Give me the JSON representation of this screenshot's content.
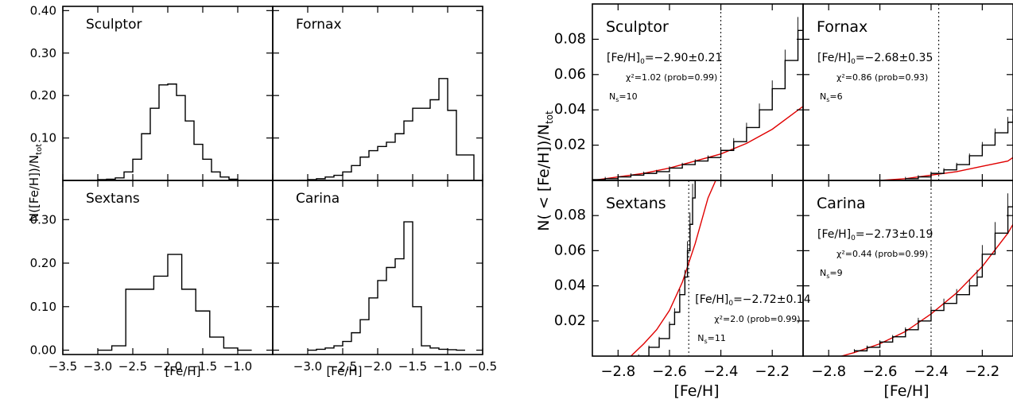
{
  "figure": {
    "left_group": {
      "y_axis_label": "N([Fe/H])/N",
      "y_axis_label_sub": "tot",
      "x_axis_label": "[Fe/H]"
    },
    "right_group": {
      "y_axis_label": "N( < [Fe/H])/N",
      "y_axis_label_sub": "tot",
      "x_axis_label": "[Fe/H]"
    }
  },
  "chart_data": [
    {
      "type": "histogram",
      "title": "Sculptor",
      "bin_width": 0.125,
      "bin_starts": [
        -3.125,
        -3.0,
        -2.875,
        -2.75,
        -2.625,
        -2.5,
        -2.375,
        -2.25,
        -2.125,
        -2.0,
        -1.875,
        -1.75,
        -1.625,
        -1.5,
        -1.375,
        -1.25,
        -1.125,
        -1.0
      ],
      "values": [
        0.0,
        0.002,
        0.003,
        0.006,
        0.02,
        0.05,
        0.11,
        0.17,
        0.225,
        0.227,
        0.2,
        0.14,
        0.085,
        0.05,
        0.02,
        0.008,
        0.003,
        0.0
      ],
      "xlim": [
        -3.5,
        -0.5
      ],
      "ylim": [
        0.0,
        0.41
      ],
      "yticks": [
        "0.10",
        "0.20",
        "0.30",
        "0.40"
      ]
    },
    {
      "type": "histogram",
      "title": "Fornax",
      "bin_width": 0.125,
      "bin_starts": [
        -3.125,
        -3.0,
        -2.875,
        -2.75,
        -2.625,
        -2.5,
        -2.375,
        -2.25,
        -2.125,
        -2.0,
        -1.875,
        -1.75,
        -1.625,
        -1.5,
        -1.375,
        -1.25,
        -1.125,
        -1.0,
        -0.875,
        -0.75
      ],
      "values": [
        0.0,
        0.002,
        0.004,
        0.008,
        0.012,
        0.02,
        0.035,
        0.055,
        0.07,
        0.08,
        0.09,
        0.11,
        0.14,
        0.17,
        0.17,
        0.19,
        0.24,
        0.165,
        0.06,
        0.06
      ],
      "xlim": [
        -3.5,
        -0.5
      ],
      "ylim": [
        0.0,
        0.41
      ]
    },
    {
      "type": "histogram",
      "title": "Sextans",
      "bin_width": 0.2,
      "bin_starts": [
        -3.0,
        -2.8,
        -2.6,
        -2.4,
        -2.2,
        -2.0,
        -1.8,
        -1.6,
        -1.4,
        -1.2,
        -1.0
      ],
      "values": [
        0.0,
        0.01,
        0.14,
        0.14,
        0.17,
        0.22,
        0.14,
        0.09,
        0.03,
        0.005,
        0.0
      ],
      "xlim": [
        -3.5,
        -0.5
      ],
      "ylim": [
        -0.01,
        0.39
      ],
      "yticks": [
        "0.00",
        "0.10",
        "0.20",
        "0.30"
      ],
      "xticks": [
        "−3.5",
        "−3.0",
        "−2.5",
        "−2.0",
        "−1.5",
        "−1.0"
      ]
    },
    {
      "type": "histogram",
      "title": "Carina",
      "bin_width": 0.125,
      "bin_starts": [
        -3.0,
        -2.875,
        -2.75,
        -2.625,
        -2.5,
        -2.375,
        -2.25,
        -2.125,
        -2.0,
        -1.875,
        -1.75,
        -1.625,
        -1.5,
        -1.375,
        -1.25,
        -1.125,
        -1.0,
        -0.875
      ],
      "values": [
        0.0,
        0.002,
        0.005,
        0.01,
        0.02,
        0.04,
        0.07,
        0.12,
        0.16,
        0.19,
        0.21,
        0.295,
        0.1,
        0.01,
        0.005,
        0.002,
        0.001,
        0.0
      ],
      "xlim": [
        -3.5,
        -0.5
      ],
      "ylim": [
        -0.01,
        0.39
      ],
      "xticks": [
        "−3.0",
        "−2.5",
        "−2.0",
        "−1.5",
        "−1.0",
        "−0.5"
      ]
    },
    {
      "type": "line",
      "title": "Sculptor",
      "feh0_label": "[Fe/H]",
      "feh0_value": "=−2.90±0.21",
      "chi2_label": "χ²=1.02 (prob=0.99)",
      "ns_label": "N",
      "ns_value": "=10",
      "cutoff": -2.4,
      "data": {
        "x": [
          -2.9,
          -2.85,
          -2.8,
          -2.75,
          -2.7,
          -2.65,
          -2.6,
          -2.55,
          -2.5,
          -2.45,
          -2.4,
          -2.35,
          -2.3,
          -2.25,
          -2.2,
          -2.15,
          -2.1,
          -2.08
        ],
        "y": [
          0.0005,
          0.001,
          0.002,
          0.003,
          0.004,
          0.005,
          0.007,
          0.009,
          0.011,
          0.013,
          0.017,
          0.022,
          0.03,
          0.04,
          0.052,
          0.068,
          0.085,
          0.099
        ]
      },
      "fit": {
        "x": [
          -2.9,
          -2.8,
          -2.7,
          -2.6,
          -2.5,
          -2.4,
          -2.3,
          -2.2,
          -2.08
        ],
        "y": [
          0.0,
          0.002,
          0.004,
          0.007,
          0.011,
          0.015,
          0.021,
          0.029,
          0.042
        ]
      },
      "xlim": [
        -2.9,
        -2.08
      ],
      "ylim": [
        0.0,
        0.1
      ],
      "yticks": [
        "0.02",
        "0.04",
        "0.06",
        "0.08"
      ]
    },
    {
      "type": "line",
      "title": "Fornax",
      "feh0_label": "[Fe/H]",
      "feh0_value": "=−2.68±0.35",
      "chi2_label": "χ²=0.86 (prob=0.93)",
      "ns_label": "N",
      "ns_value": "=6",
      "cutoff": -2.37,
      "data": {
        "x": [
          -2.5,
          -2.45,
          -2.4,
          -2.35,
          -2.3,
          -2.25,
          -2.2,
          -2.15,
          -2.1,
          -2.08
        ],
        "y": [
          0.001,
          0.002,
          0.004,
          0.006,
          0.009,
          0.014,
          0.02,
          0.027,
          0.033,
          0.037
        ]
      },
      "fit": {
        "x": [
          -2.6,
          -2.5,
          -2.4,
          -2.3,
          -2.2,
          -2.1,
          -2.08
        ],
        "y": [
          0.0,
          0.001,
          0.003,
          0.005,
          0.008,
          0.011,
          0.013
        ]
      },
      "xlim": [
        -2.9,
        -2.08
      ],
      "ylim": [
        0.0,
        0.1
      ]
    },
    {
      "type": "line",
      "title": "Sextans",
      "feh0_label": "[Fe/H]",
      "feh0_value": "=−2.72±0.14",
      "chi2_label": "χ²=2.0 (prob=0.99)",
      "ns_label": "N",
      "ns_value": "=11",
      "cutoff": -2.525,
      "data": {
        "x": [
          -2.72,
          -2.68,
          -2.64,
          -2.6,
          -2.58,
          -2.56,
          -2.54,
          -2.53,
          -2.52,
          -2.51,
          -2.5
        ],
        "y": [
          0.0,
          0.005,
          0.01,
          0.018,
          0.025,
          0.035,
          0.045,
          0.06,
          0.075,
          0.09,
          0.1
        ]
      },
      "fit": {
        "x": [
          -2.75,
          -2.7,
          -2.65,
          -2.6,
          -2.55,
          -2.5,
          -2.45,
          -2.42
        ],
        "y": [
          0.0,
          0.007,
          0.015,
          0.026,
          0.042,
          0.064,
          0.09,
          0.1
        ]
      },
      "xlim": [
        -2.9,
        -2.08
      ],
      "ylim": [
        0.0,
        0.1
      ],
      "yticks": [
        "0.02",
        "0.04",
        "0.06",
        "0.08"
      ],
      "xticks": [
        "−2.8",
        "−2.6",
        "−2.4",
        "−2.2"
      ]
    },
    {
      "type": "line",
      "title": "Carina",
      "feh0_label": "[Fe/H]",
      "feh0_value": "=−2.73±0.19",
      "chi2_label": "χ²=0.44 (prob=0.99)",
      "ns_label": "N",
      "ns_value": "=9",
      "cutoff": -2.4,
      "data": {
        "x": [
          -2.7,
          -2.65,
          -2.6,
          -2.55,
          -2.5,
          -2.45,
          -2.4,
          -2.35,
          -2.3,
          -2.25,
          -2.22,
          -2.2,
          -2.15,
          -2.1,
          -2.08
        ],
        "y": [
          0.003,
          0.005,
          0.008,
          0.011,
          0.015,
          0.02,
          0.026,
          0.03,
          0.035,
          0.04,
          0.045,
          0.058,
          0.07,
          0.085,
          0.1
        ]
      },
      "fit": {
        "x": [
          -2.75,
          -2.7,
          -2.6,
          -2.5,
          -2.4,
          -2.3,
          -2.2,
          -2.1,
          -2.08
        ],
        "y": [
          0.0,
          0.002,
          0.007,
          0.014,
          0.024,
          0.036,
          0.051,
          0.07,
          0.075
        ]
      },
      "xlim": [
        -2.9,
        -2.08
      ],
      "ylim": [
        0.0,
        0.1
      ],
      "xticks": [
        "−2.8",
        "−2.6",
        "−2.4",
        "−2.2"
      ]
    }
  ]
}
